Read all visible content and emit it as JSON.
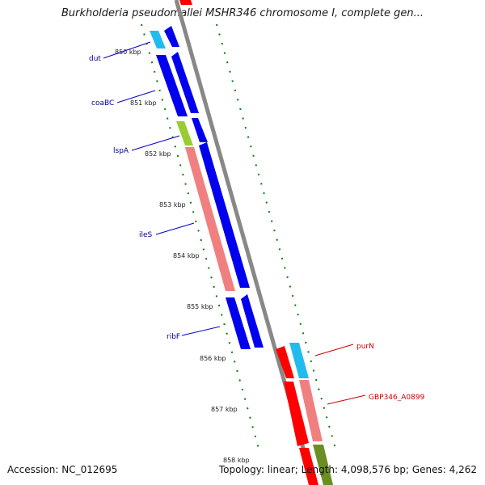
{
  "title": "Burkholderia pseudomallei MSHR346 chromosome I, complete gen...",
  "accession_text": "Accession: NC_012695",
  "summary_text": "Topology: linear; Length: 4,098,576 bp; Genes: 4,262",
  "kbp_labels": [
    "850 kbp",
    "851 kbp",
    "852 kbp",
    "853 kbp",
    "854 kbp",
    "855 kbp",
    "856 kbp",
    "857 kbp",
    "858 kbp"
  ],
  "gene_labels": [
    {
      "name": "dut",
      "color": "#00008b"
    },
    {
      "name": "coaBC",
      "color": "#00008b"
    },
    {
      "name": "lspA",
      "color": "#00008b"
    },
    {
      "name": "ileS",
      "color": "#00008b"
    },
    {
      "name": "ribF",
      "color": "#00008b"
    },
    {
      "name": "purN",
      "color": "#cc0000"
    },
    {
      "name": "GBP346_A0899",
      "color": "#cc0000"
    }
  ],
  "colors": {
    "cds_blue": "#0000ee",
    "cds_red": "#ff0000",
    "gene_salmon": "#f08080",
    "gene_cyan": "#22bbee",
    "gene_green": "#99cc33",
    "gene_olive": "#6b8e23",
    "backbone": "#888888",
    "tick_green": "#008000"
  }
}
